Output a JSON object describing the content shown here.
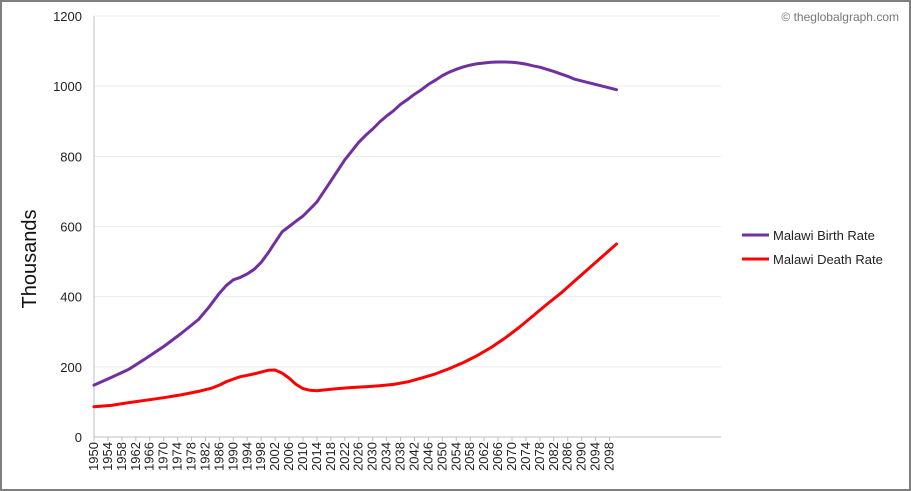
{
  "credit": "© theglobalgraph.com",
  "chart_data": {
    "type": "line",
    "title": "",
    "xlabel": "",
    "ylabel": "Thousands",
    "ylim": [
      0,
      1200
    ],
    "yticks": [
      "0",
      "200",
      "400",
      "600",
      "800",
      "1000",
      "1200"
    ],
    "xlim": [
      1950,
      2130
    ],
    "xticks": [
      "1950",
      "1954",
      "1958",
      "1962",
      "1966",
      "1970",
      "1974",
      "1978",
      "1982",
      "1986",
      "1990",
      "1994",
      "1998",
      "2002",
      "2006",
      "2010",
      "2014",
      "2018",
      "2022",
      "2026",
      "2030",
      "2034",
      "2038",
      "2042",
      "2046",
      "2050",
      "2054",
      "2058",
      "2062",
      "2066",
      "2070",
      "2074",
      "2078",
      "2082",
      "2086",
      "2090",
      "2094",
      "2098"
    ],
    "grid": true,
    "legend_position": "right",
    "series": [
      {
        "name": "Malawi Birth Rate",
        "color": "#7030a0",
        "x": [
          1950,
          1955,
          1960,
          1965,
          1970,
          1975,
          1980,
          1983,
          1986,
          1988,
          1990,
          1992,
          1994,
          1996,
          1998,
          2000,
          2002,
          2004,
          2006,
          2008,
          2010,
          2012,
          2014,
          2016,
          2018,
          2020,
          2022,
          2024,
          2026,
          2028,
          2030,
          2032,
          2034,
          2036,
          2038,
          2040,
          2042,
          2044,
          2046,
          2048,
          2050,
          2052,
          2054,
          2056,
          2058,
          2060,
          2062,
          2064,
          2066,
          2068,
          2070,
          2072,
          2074,
          2076,
          2078,
          2080,
          2082,
          2084,
          2086,
          2088,
          2090,
          2092,
          2094,
          2096,
          2098,
          2100
        ],
        "values": [
          148,
          170,
          193,
          225,
          258,
          295,
          335,
          370,
          410,
          432,
          448,
          455,
          465,
          478,
          498,
          525,
          555,
          585,
          600,
          615,
          630,
          650,
          670,
          700,
          730,
          760,
          790,
          815,
          840,
          860,
          878,
          898,
          915,
          930,
          948,
          962,
          977,
          990,
          1005,
          1017,
          1030,
          1040,
          1048,
          1055,
          1060,
          1064,
          1066,
          1068,
          1069,
          1069,
          1068,
          1066,
          1063,
          1058,
          1054,
          1048,
          1042,
          1035,
          1028,
          1020,
          1015,
          1010,
          1005,
          1000,
          995,
          990
        ]
      },
      {
        "name": "Malawi Death Rate",
        "color": "#ff0000",
        "x": [
          1950,
          1955,
          1960,
          1965,
          1970,
          1975,
          1980,
          1984,
          1986,
          1988,
          1990,
          1992,
          1994,
          1996,
          1998,
          2000,
          2002,
          2004,
          2006,
          2008,
          2010,
          2012,
          2014,
          2016,
          2018,
          2020,
          2024,
          2028,
          2032,
          2036,
          2040,
          2044,
          2048,
          2052,
          2056,
          2060,
          2064,
          2068,
          2072,
          2076,
          2080,
          2084,
          2088,
          2092,
          2096,
          2100
        ],
        "values": [
          86,
          90,
          98,
          105,
          112,
          120,
          130,
          140,
          148,
          158,
          165,
          172,
          176,
          180,
          185,
          190,
          191,
          182,
          168,
          150,
          138,
          133,
          132,
          134,
          136,
          138,
          141,
          143,
          146,
          150,
          157,
          168,
          180,
          195,
          212,
          232,
          255,
          282,
          312,
          345,
          378,
          410,
          445,
          480,
          515,
          550
        ]
      }
    ]
  }
}
